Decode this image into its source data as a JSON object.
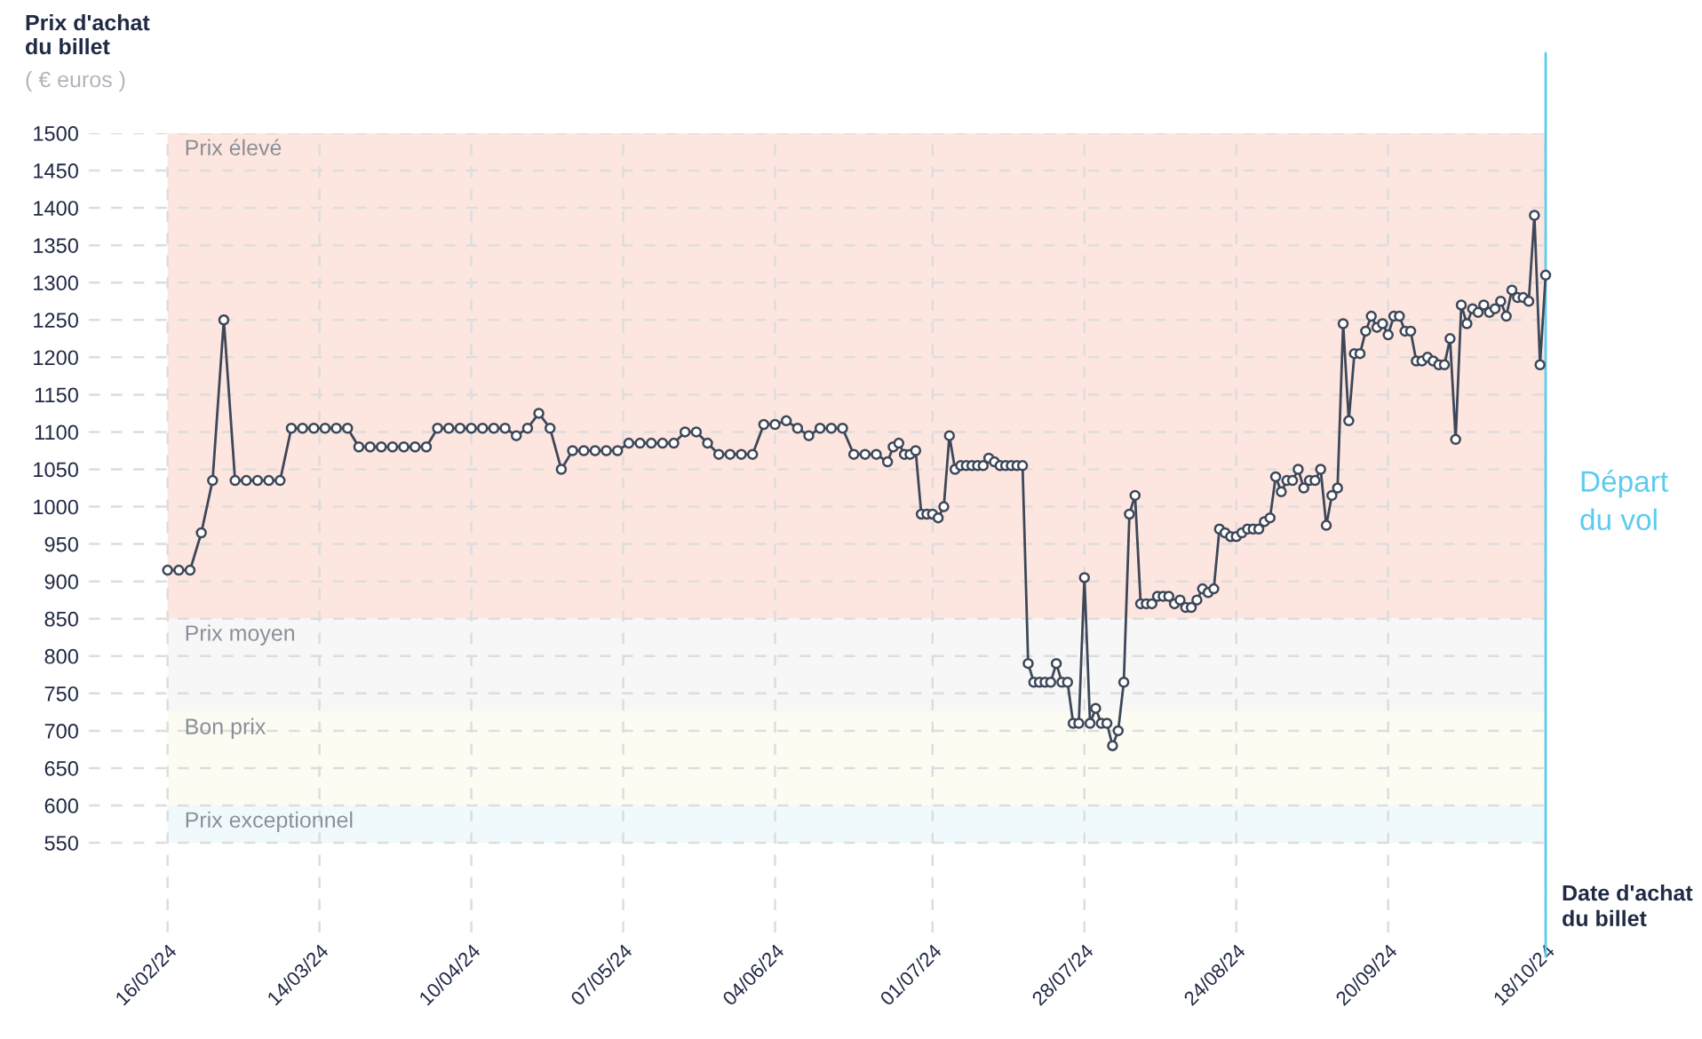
{
  "chart_data": {
    "type": "line",
    "ylabel": "Prix d'achat\ndu billet",
    "xlabel": "Date d'achat\ndu billet",
    "annotations": [
      "( € euros )"
    ],
    "x": [
      "2024-02-16",
      "2024-02-18",
      "2024-02-20",
      "2024-02-22",
      "2024-02-24",
      "2024-02-26",
      "2024-02-28",
      "2024-03-01",
      "2024-03-03",
      "2024-03-05",
      "2024-03-07",
      "2024-03-09",
      "2024-03-11",
      "2024-03-13",
      "2024-03-15",
      "2024-03-17",
      "2024-03-19",
      "2024-03-21",
      "2024-03-23",
      "2024-03-25",
      "2024-03-27",
      "2024-03-29",
      "2024-03-31",
      "2024-04-02",
      "2024-04-04",
      "2024-04-06",
      "2024-04-08",
      "2024-04-10",
      "2024-04-12",
      "2024-04-14",
      "2024-04-16",
      "2024-04-18",
      "2024-04-20",
      "2024-04-22",
      "2024-04-24",
      "2024-04-26",
      "2024-04-28",
      "2024-04-30",
      "2024-05-02",
      "2024-05-04",
      "2024-05-06",
      "2024-05-08",
      "2024-05-10",
      "2024-05-12",
      "2024-05-14",
      "2024-05-16",
      "2024-05-18",
      "2024-05-20",
      "2024-05-22",
      "2024-05-24",
      "2024-05-26",
      "2024-05-28",
      "2024-05-30",
      "2024-06-01",
      "2024-06-03",
      "2024-06-05",
      "2024-06-07",
      "2024-06-09",
      "2024-06-11",
      "2024-06-13",
      "2024-06-15",
      "2024-06-17",
      "2024-06-19",
      "2024-06-21",
      "2024-06-23",
      "2024-06-24",
      "2024-06-25",
      "2024-06-26",
      "2024-06-27",
      "2024-06-28",
      "2024-06-29",
      "2024-06-30",
      "2024-07-01",
      "2024-07-02",
      "2024-07-03",
      "2024-07-04",
      "2024-07-05",
      "2024-07-06",
      "2024-07-07",
      "2024-07-08",
      "2024-07-09",
      "2024-07-10",
      "2024-07-11",
      "2024-07-12",
      "2024-07-13",
      "2024-07-14",
      "2024-07-15",
      "2024-07-16",
      "2024-07-17",
      "2024-07-18",
      "2024-07-19",
      "2024-07-20",
      "2024-07-21",
      "2024-07-22",
      "2024-07-23",
      "2024-07-24",
      "2024-07-25",
      "2024-07-26",
      "2024-07-27",
      "2024-07-28",
      "2024-07-29",
      "2024-07-30",
      "2024-07-31",
      "2024-08-01",
      "2024-08-02",
      "2024-08-03",
      "2024-08-04",
      "2024-08-05",
      "2024-08-06",
      "2024-08-07",
      "2024-08-08",
      "2024-08-09",
      "2024-08-10",
      "2024-08-11",
      "2024-08-12",
      "2024-08-13",
      "2024-08-14",
      "2024-08-15",
      "2024-08-16",
      "2024-08-17",
      "2024-08-18",
      "2024-08-19",
      "2024-08-20",
      "2024-08-21",
      "2024-08-22",
      "2024-08-23",
      "2024-08-24",
      "2024-08-25",
      "2024-08-26",
      "2024-08-27",
      "2024-08-28",
      "2024-08-29",
      "2024-08-30",
      "2024-08-31",
      "2024-09-01",
      "2024-09-02",
      "2024-09-03",
      "2024-09-04",
      "2024-09-05",
      "2024-09-06",
      "2024-09-07",
      "2024-09-08",
      "2024-09-09",
      "2024-09-10",
      "2024-09-11",
      "2024-09-12",
      "2024-09-13",
      "2024-09-14",
      "2024-09-15",
      "2024-09-16",
      "2024-09-17",
      "2024-09-18",
      "2024-09-19",
      "2024-09-20",
      "2024-09-21",
      "2024-09-22",
      "2024-09-23",
      "2024-09-24",
      "2024-09-25",
      "2024-09-26",
      "2024-09-27",
      "2024-09-28",
      "2024-09-29",
      "2024-09-30",
      "2024-10-01",
      "2024-10-02",
      "2024-10-03",
      "2024-10-04",
      "2024-10-05",
      "2024-10-06",
      "2024-10-07",
      "2024-10-08",
      "2024-10-09",
      "2024-10-10",
      "2024-10-11",
      "2024-10-12",
      "2024-10-13",
      "2024-10-14",
      "2024-10-15",
      "2024-10-16",
      "2024-10-17",
      "2024-10-18"
    ],
    "series": [
      {
        "color": "#3d4759",
        "values": [
          915,
          915,
          915,
          965,
          1035,
          1250,
          1035,
          1035,
          1035,
          1035,
          1035,
          1105,
          1105,
          1105,
          1105,
          1105,
          1105,
          1080,
          1080,
          1080,
          1080,
          1080,
          1080,
          1080,
          1105,
          1105,
          1105,
          1105,
          1105,
          1105,
          1105,
          1095,
          1105,
          1125,
          1105,
          1050,
          1075,
          1075,
          1075,
          1075,
          1075,
          1085,
          1085,
          1085,
          1085,
          1085,
          1100,
          1100,
          1085,
          1070,
          1070,
          1070,
          1070,
          1110,
          1110,
          1115,
          1105,
          1095,
          1105,
          1105,
          1105,
          1070,
          1070,
          1070,
          1060,
          1080,
          1085,
          1070,
          1070,
          1075,
          990,
          990,
          990,
          985,
          1000,
          1095,
          1050,
          1055,
          1055,
          1055,
          1055,
          1055,
          1065,
          1060,
          1055,
          1055,
          1055,
          1055,
          1055,
          790,
          765,
          765,
          765,
          765,
          790,
          765,
          765,
          710,
          710,
          905,
          710,
          730,
          710,
          710,
          680,
          700,
          765,
          990,
          1015,
          870,
          870,
          870,
          880,
          880,
          880,
          870,
          875,
          865,
          865,
          875,
          890,
          885,
          890,
          970,
          965,
          960,
          960,
          965,
          970,
          970,
          970,
          980,
          985,
          1040,
          1020,
          1035,
          1035,
          1050,
          1025,
          1035,
          1035,
          1050,
          975,
          1015,
          1025,
          1245,
          1115,
          1205,
          1205,
          1235,
          1255,
          1240,
          1245,
          1230,
          1255,
          1255,
          1235,
          1235,
          1195,
          1195,
          1200,
          1195,
          1190,
          1190,
          1225,
          1090,
          1270,
          1245,
          1265,
          1260,
          1270,
          1260,
          1265,
          1275,
          1255,
          1290,
          1280,
          1280,
          1275,
          1390,
          1190,
          1310
        ]
      }
    ],
    "marker": "circle",
    "line_style": "solid",
    "grid": true,
    "legend": false,
    "xlim": [
      "2024-02-02",
      "2024-10-18"
    ],
    "xticks": [
      {
        "value": "2024-02-16",
        "label": "16/02/24"
      },
      {
        "value": "2024-03-14",
        "label": "14/03/24"
      },
      {
        "value": "2024-04-10",
        "label": "10/04/24"
      },
      {
        "value": "2024-05-07",
        "label": "07/05/24"
      },
      {
        "value": "2024-06-03",
        "label": "04/06/24"
      },
      {
        "value": "2024-07-01",
        "label": "01/07/24"
      },
      {
        "value": "2024-07-28",
        "label": "28/07/24"
      },
      {
        "value": "2024-08-24",
        "label": "24/08/24"
      },
      {
        "value": "2024-09-20",
        "label": "20/09/24"
      },
      {
        "value": "2024-10-18",
        "label": "18/10/24"
      }
    ],
    "ylim": [
      430,
      1500
    ],
    "yticks": [
      550,
      600,
      650,
      700,
      750,
      800,
      850,
      900,
      950,
      1000,
      1050,
      1100,
      1150,
      1200,
      1250,
      1300,
      1350,
      1400,
      1450,
      1500
    ],
    "bands": [
      {
        "axis": "y",
        "from": 850,
        "to": 1500,
        "label": "Prix élevé",
        "color": "#fde6df"
      },
      {
        "axis": "y",
        "from": 725,
        "to": 850,
        "label": "Prix moyen",
        "color": "#f7f7f7"
      },
      {
        "axis": "y",
        "from": 600,
        "to": 725,
        "label": "Bon prix",
        "color": "#fcfcf3"
      },
      {
        "axis": "y",
        "from": 550,
        "to": 600,
        "label": "Prix exceptionnel",
        "color": "#f0fafc"
      }
    ],
    "ref_lines": [
      {
        "axis": "x",
        "value": "2024-10-18",
        "label": "Départ\ndu vol",
        "color": "#5ccbef"
      }
    ]
  }
}
